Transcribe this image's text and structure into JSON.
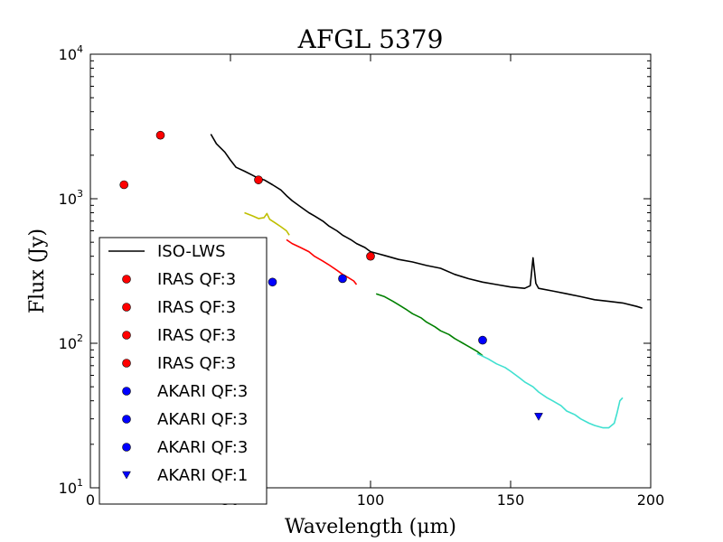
{
  "chart_data": {
    "type": "line",
    "title": "AFGL 5379",
    "xlabel": "Wavelength (μm)",
    "ylabel": "Flux (Jy)",
    "xlim": [
      0,
      200
    ],
    "ylim": [
      10,
      10000
    ],
    "yscale": "log",
    "grid": false,
    "legend_position": "lower-left",
    "x_ticks": [
      0,
      50,
      100,
      150,
      200
    ],
    "x_tick_labels": [
      "0",
      "50",
      "100",
      "150",
      "200"
    ],
    "y_ticks": [
      10,
      100,
      1000,
      10000
    ],
    "y_tick_labels": [
      {
        "base": "10",
        "exp": "1"
      },
      {
        "base": "10",
        "exp": "2"
      },
      {
        "base": "10",
        "exp": "3"
      },
      {
        "base": "10",
        "exp": "4"
      }
    ],
    "series": [
      {
        "name": "ISO-LWS",
        "kind": "line",
        "color": "#000000",
        "points": [
          [
            43,
            2800
          ],
          [
            45,
            2400
          ],
          [
            48,
            2100
          ],
          [
            50,
            1850
          ],
          [
            52,
            1650
          ],
          [
            55,
            1550
          ],
          [
            58,
            1450
          ],
          [
            60,
            1380
          ],
          [
            62,
            1350
          ],
          [
            65,
            1250
          ],
          [
            68,
            1150
          ],
          [
            70,
            1050
          ],
          [
            72,
            970
          ],
          [
            75,
            880
          ],
          [
            78,
            800
          ],
          [
            80,
            760
          ],
          [
            83,
            700
          ],
          [
            85,
            650
          ],
          [
            88,
            600
          ],
          [
            90,
            560
          ],
          [
            93,
            520
          ],
          [
            95,
            490
          ],
          [
            98,
            460
          ],
          [
            100,
            430
          ],
          [
            103,
            415
          ],
          [
            105,
            405
          ],
          [
            110,
            380
          ],
          [
            115,
            365
          ],
          [
            120,
            345
          ],
          [
            125,
            330
          ],
          [
            130,
            300
          ],
          [
            135,
            280
          ],
          [
            140,
            265
          ],
          [
            145,
            255
          ],
          [
            150,
            245
          ],
          [
            155,
            240
          ],
          [
            157,
            250
          ],
          [
            158,
            390
          ],
          [
            159,
            260
          ],
          [
            160,
            240
          ],
          [
            165,
            230
          ],
          [
            170,
            220
          ],
          [
            175,
            210
          ],
          [
            180,
            200
          ],
          [
            185,
            195
          ],
          [
            190,
            190
          ],
          [
            195,
            180
          ],
          [
            197,
            175
          ]
        ]
      },
      {
        "name": "",
        "kind": "line",
        "color": "#bfbf00",
        "points": [
          [
            55,
            800
          ],
          [
            58,
            760
          ],
          [
            60,
            730
          ],
          [
            62,
            740
          ],
          [
            63,
            790
          ],
          [
            64,
            720
          ],
          [
            66,
            680
          ],
          [
            68,
            640
          ],
          [
            70,
            600
          ],
          [
            71,
            560
          ]
        ]
      },
      {
        "name": "",
        "kind": "line",
        "color": "#ff0000",
        "points": [
          [
            70,
            520
          ],
          [
            72,
            490
          ],
          [
            75,
            460
          ],
          [
            78,
            430
          ],
          [
            80,
            400
          ],
          [
            83,
            370
          ],
          [
            85,
            350
          ],
          [
            88,
            320
          ],
          [
            90,
            300
          ],
          [
            92,
            285
          ],
          [
            94,
            270
          ],
          [
            95,
            255
          ]
        ]
      },
      {
        "name": "",
        "kind": "line",
        "color": "#008000",
        "points": [
          [
            102,
            220
          ],
          [
            105,
            210
          ],
          [
            108,
            195
          ],
          [
            110,
            185
          ],
          [
            113,
            170
          ],
          [
            115,
            160
          ],
          [
            118,
            150
          ],
          [
            120,
            140
          ],
          [
            123,
            130
          ],
          [
            125,
            122
          ],
          [
            128,
            115
          ],
          [
            130,
            108
          ],
          [
            133,
            100
          ],
          [
            135,
            95
          ],
          [
            138,
            88
          ],
          [
            140,
            82
          ]
        ]
      },
      {
        "name": "",
        "kind": "line",
        "color": "#40e0d0",
        "points": [
          [
            138,
            85
          ],
          [
            142,
            78
          ],
          [
            145,
            72
          ],
          [
            148,
            68
          ],
          [
            150,
            64
          ],
          [
            153,
            58
          ],
          [
            155,
            54
          ],
          [
            158,
            50
          ],
          [
            160,
            46
          ],
          [
            163,
            42
          ],
          [
            165,
            40
          ],
          [
            168,
            37
          ],
          [
            170,
            34
          ],
          [
            173,
            32
          ],
          [
            175,
            30
          ],
          [
            178,
            28
          ],
          [
            180,
            27
          ],
          [
            183,
            26
          ],
          [
            185,
            26
          ],
          [
            187,
            28
          ],
          [
            188,
            33
          ],
          [
            189,
            40
          ],
          [
            190,
            42
          ]
        ]
      },
      {
        "name": "IRAS QF:3",
        "kind": "marker",
        "marker": "circle",
        "color": "#ff0000",
        "points": [
          [
            12,
            1250
          ]
        ]
      },
      {
        "name": "IRAS QF:3",
        "kind": "marker",
        "marker": "circle",
        "color": "#ff0000",
        "points": [
          [
            25,
            2750
          ]
        ]
      },
      {
        "name": "IRAS QF:3",
        "kind": "marker",
        "marker": "circle",
        "color": "#ff0000",
        "points": [
          [
            60,
            1350
          ]
        ]
      },
      {
        "name": "IRAS QF:3",
        "kind": "marker",
        "marker": "circle",
        "color": "#ff0000",
        "points": [
          [
            100,
            400
          ]
        ]
      },
      {
        "name": "AKARI QF:3",
        "kind": "marker",
        "marker": "circle",
        "color": "#0000ff",
        "points": [
          [
            65,
            265
          ]
        ]
      },
      {
        "name": "AKARI QF:3",
        "kind": "marker",
        "marker": "circle",
        "color": "#0000ff",
        "points": [
          [
            90,
            280
          ]
        ]
      },
      {
        "name": "AKARI QF:3",
        "kind": "marker",
        "marker": "circle",
        "color": "#0000ff",
        "points": [
          [
            140,
            105
          ]
        ]
      },
      {
        "name": "AKARI QF:1",
        "kind": "marker",
        "marker": "triangle-down",
        "color": "#0000ff",
        "points": [
          [
            160,
            31
          ]
        ]
      }
    ]
  }
}
